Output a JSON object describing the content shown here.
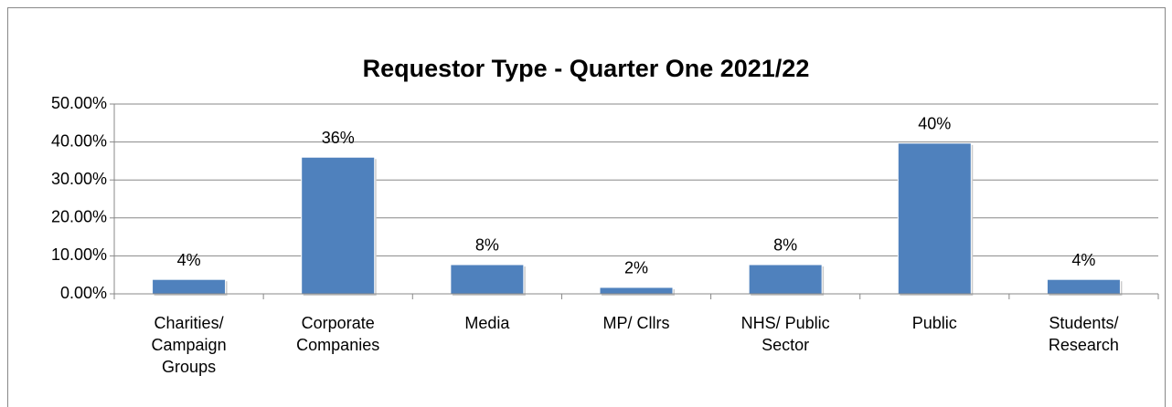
{
  "chart_data": {
    "type": "bar",
    "title": "Requestor Type - Quarter One 2021/22",
    "categories": [
      "Charities/\nCampaign\nGroups",
      "Corporate\nCompanies",
      "Media",
      "MP/ Cllrs",
      "NHS/ Public\nSector",
      "Public",
      "Students/\nResearch"
    ],
    "values": [
      3.8,
      36,
      7.7,
      1.7,
      7.7,
      39.7,
      3.8
    ],
    "value_labels": [
      "4%",
      "36%",
      "8%",
      "2%",
      "8%",
      "40%",
      "4%"
    ],
    "color": "#4f81bd",
    "ylim": [
      0,
      50
    ],
    "yticks": [
      {
        "value": 0,
        "label": "0.00%"
      },
      {
        "value": 10,
        "label": "10.00%"
      },
      {
        "value": 20,
        "label": "20.00%"
      },
      {
        "value": 30,
        "label": "30.00%"
      },
      {
        "value": 40,
        "label": "40.00%"
      },
      {
        "value": 50,
        "label": "50.00%"
      }
    ],
    "grid": true
  }
}
